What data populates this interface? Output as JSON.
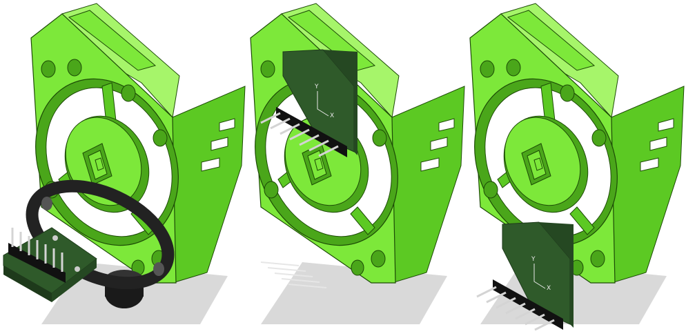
{
  "scene": {
    "background": "#ffffff",
    "colors": {
      "part_front": "#7de83a",
      "part_top": "#a6f56a",
      "part_side": "#5cc923",
      "part_inner": "#4aa61a",
      "edge": "#1c4a06",
      "board": "#2f5a2a",
      "board_dark": "#1e3a1b",
      "pin_header": "#111111",
      "pin": "#d4d4d4",
      "shadow": "#cfcfcf",
      "knob": "#1a1a1a"
    },
    "views": [
      {
        "name": "exploded-view-sensor-below",
        "sensor_position": "below-left"
      },
      {
        "name": "assembled-view-sensor-mounted",
        "sensor_position": "mounted-top"
      },
      {
        "name": "exploded-view-sensor-front",
        "sensor_position": "below-front"
      }
    ],
    "board_labels": {
      "y_axis": "Y",
      "x_axis": "X"
    }
  }
}
